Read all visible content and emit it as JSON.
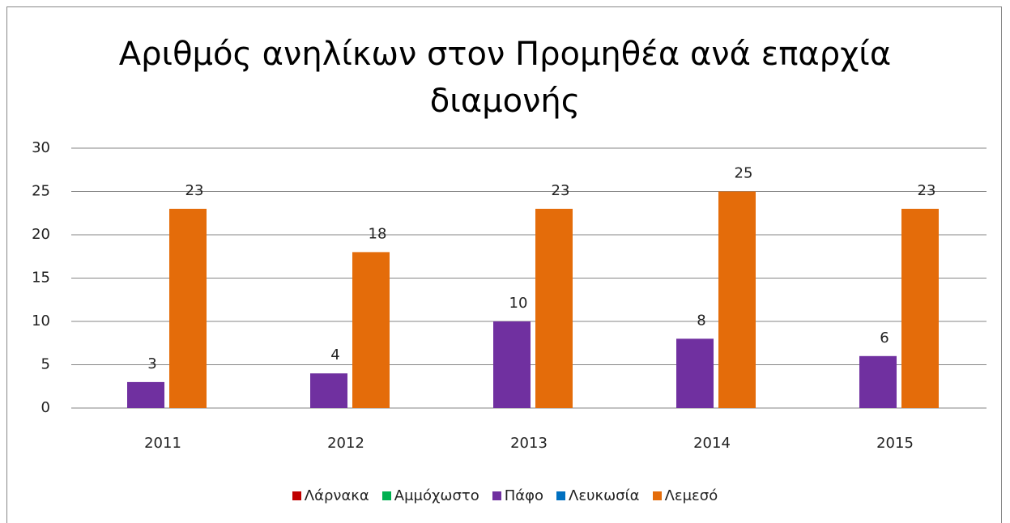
{
  "chart_data": {
    "type": "bar",
    "title": "Αριθμός ανηλίκων στον Προμηθέα ανά επαρχία διαμονής",
    "categories": [
      "2011",
      "2012",
      "2013",
      "2014",
      "2015"
    ],
    "series": [
      {
        "name": "Λάρνακα",
        "color": "#c00000",
        "values": [
          null,
          null,
          null,
          null,
          null
        ]
      },
      {
        "name": "Αμμόχωστο",
        "color": "#00b050",
        "values": [
          null,
          null,
          null,
          null,
          null
        ]
      },
      {
        "name": "Πάφο",
        "color": "#7030a0",
        "values": [
          3,
          4,
          10,
          8,
          6
        ]
      },
      {
        "name": "Λευκωσία",
        "color": "#0070c0",
        "values": [
          null,
          null,
          null,
          null,
          null
        ]
      },
      {
        "name": "Λεμεσό",
        "color": "#e46c0a",
        "values": [
          23,
          18,
          23,
          25,
          23
        ]
      }
    ],
    "ylim": [
      0,
      30
    ],
    "yticks": [
      0,
      5,
      10,
      15,
      20,
      25,
      30
    ],
    "grid": true,
    "legend": "bottom"
  }
}
